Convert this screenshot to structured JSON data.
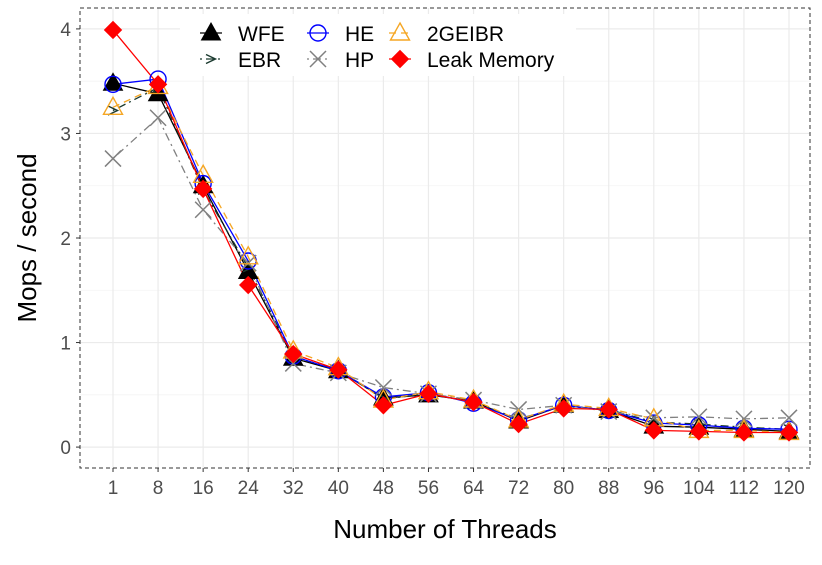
{
  "chart_data": {
    "type": "line",
    "xlabel": "Number of Threads",
    "ylabel": "Mops / second",
    "categories": [
      "1",
      "8",
      "16",
      "24",
      "32",
      "40",
      "48",
      "56",
      "64",
      "72",
      "80",
      "88",
      "96",
      "104",
      "112",
      "120"
    ],
    "ylim": [
      -0.2,
      4.2
    ],
    "yticks": [
      "0",
      "1",
      "2",
      "3",
      "4"
    ],
    "grid": true,
    "legend_position": "top",
    "series": [
      {
        "name": "WFE",
        "color": "#000000",
        "marker": "triangle-filled",
        "dash": "solid",
        "values": [
          3.48,
          3.38,
          2.5,
          1.68,
          0.85,
          0.73,
          0.47,
          0.5,
          0.44,
          0.25,
          0.4,
          0.35,
          0.2,
          0.19,
          0.17,
          0.15
        ]
      },
      {
        "name": "EBR",
        "color": "#1b3a2f",
        "marker": "arrowhead",
        "dash": "dotdash",
        "values": [
          3.22,
          3.44,
          2.46,
          1.72,
          0.86,
          0.74,
          0.46,
          0.51,
          0.43,
          0.27,
          0.39,
          0.36,
          0.24,
          0.22,
          0.19,
          0.17
        ]
      },
      {
        "name": "HE",
        "color": "#0000ff",
        "marker": "circle-open",
        "dash": "solid",
        "values": [
          3.47,
          3.52,
          2.52,
          1.78,
          0.87,
          0.73,
          0.48,
          0.52,
          0.42,
          0.26,
          0.4,
          0.35,
          0.23,
          0.21,
          0.18,
          0.17
        ]
      },
      {
        "name": "HP",
        "color": "#808080",
        "marker": "x",
        "dash": "dotdash",
        "values": [
          2.76,
          3.15,
          2.27,
          1.76,
          0.8,
          0.71,
          0.57,
          0.51,
          0.45,
          0.36,
          0.4,
          0.34,
          0.28,
          0.29,
          0.27,
          0.28
        ]
      },
      {
        "name": "2GEIBR",
        "color": "#f5a623",
        "marker": "triangle-open",
        "dash": "dashed",
        "values": [
          3.25,
          3.45,
          2.6,
          1.82,
          0.92,
          0.76,
          0.45,
          0.53,
          0.45,
          0.26,
          0.41,
          0.37,
          0.27,
          0.16,
          0.16,
          0.14
        ]
      },
      {
        "name": "Leak Memory",
        "color": "#ff0000",
        "marker": "diamond-filled",
        "dash": "solid",
        "values": [
          3.99,
          3.47,
          2.47,
          1.55,
          0.89,
          0.74,
          0.4,
          0.51,
          0.43,
          0.22,
          0.37,
          0.36,
          0.16,
          0.15,
          0.14,
          0.14
        ]
      }
    ]
  }
}
